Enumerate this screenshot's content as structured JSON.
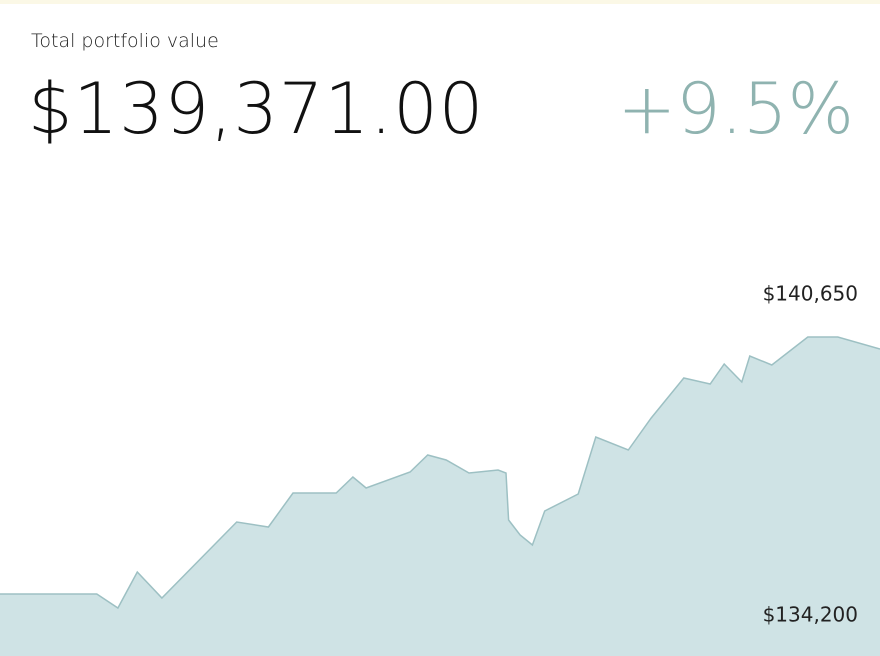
{
  "header": {
    "label": "Total portfolio value",
    "value": "$139,371.00",
    "change": "+9.5%"
  },
  "chart_data": {
    "type": "area",
    "color": "#cfe3e5",
    "line_color": "#9dc0c3",
    "x": [
      0,
      11,
      13.4,
      15.6,
      18.4,
      26.9,
      30.5,
      33.3,
      38.2,
      40.1,
      41.6,
      46.6,
      48.6,
      50.7,
      53.3,
      56.6,
      57.5,
      57.8,
      59.1,
      60.5,
      61.9,
      65.7,
      67.7,
      71.4,
      74,
      77.7,
      80.7,
      82.3,
      84.3,
      85.2,
      87.7,
      91.8,
      95.2,
      100
    ],
    "values": [
      134533,
      134533,
      134200,
      135054,
      134438,
      136240,
      136121,
      136928,
      136928,
      137307,
      137046,
      137425,
      137829,
      137710,
      137402,
      137473,
      137402,
      136287,
      135932,
      135695,
      136501,
      136904,
      138255,
      137947,
      138706,
      139654,
      139512,
      139986,
      139559,
      140176,
      139962,
      140626,
      140626,
      140342
    ],
    "xlim": [
      0,
      100
    ],
    "ylim": [
      134200,
      140650
    ],
    "yticks": [
      {
        "value": 140650,
        "label": "$140,650"
      },
      {
        "value": 134200,
        "label": "$134,200"
      }
    ]
  }
}
